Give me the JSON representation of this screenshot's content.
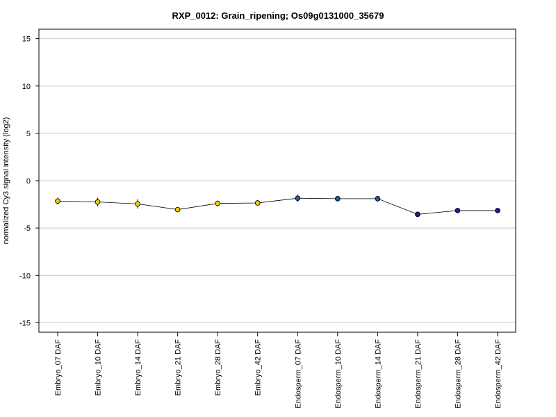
{
  "chart_data": {
    "type": "line",
    "title": "RXP_0012: Grain_ripening; Os09g0131000_35679",
    "xlabel": "",
    "ylabel": "normalized Cy3 signal intensity (log2)",
    "ylim": [
      -16,
      16
    ],
    "yticks": [
      15,
      10,
      5,
      0,
      -5,
      -10,
      -15
    ],
    "ytick_labels": [
      "15",
      "10",
      "5",
      "0",
      "-5",
      "-10",
      "-15"
    ],
    "grid": "horizontal",
    "categories": [
      "Embryo_07 DAF",
      "Embryo_10 DAF",
      "Embryo_14 DAF",
      "Embryo_21 DAF",
      "Embryo_28 DAF",
      "Embryo_42 DAF",
      "Endosperm_07 DAF",
      "Endosperm_10 DAF",
      "Endosperm_14 DAF",
      "Endosperm_21 DAF",
      "Endosperm_28 DAF",
      "Endosperm_42 DAF"
    ],
    "series": [
      {
        "values": [
          -2.15,
          -2.25,
          -2.45,
          -3.05,
          -2.4,
          -2.35,
          -1.85,
          -1.9,
          -1.9,
          -3.55,
          -3.15,
          -3.15
        ],
        "errors": [
          0.35,
          0.45,
          0.5,
          0.15,
          0.3,
          0.15,
          0.4,
          0.15,
          0.15,
          0.2,
          0.1,
          0.1
        ],
        "colors": [
          "#f0d000",
          "#f0d000",
          "#f0d000",
          "#f0d000",
          "#f0d000",
          "#f0d000",
          "#1f5ca8",
          "#1f5ca8",
          "#1f5ca8",
          "#1a1aa0",
          "#1a1aa0",
          "#1a1aa0"
        ]
      }
    ]
  }
}
